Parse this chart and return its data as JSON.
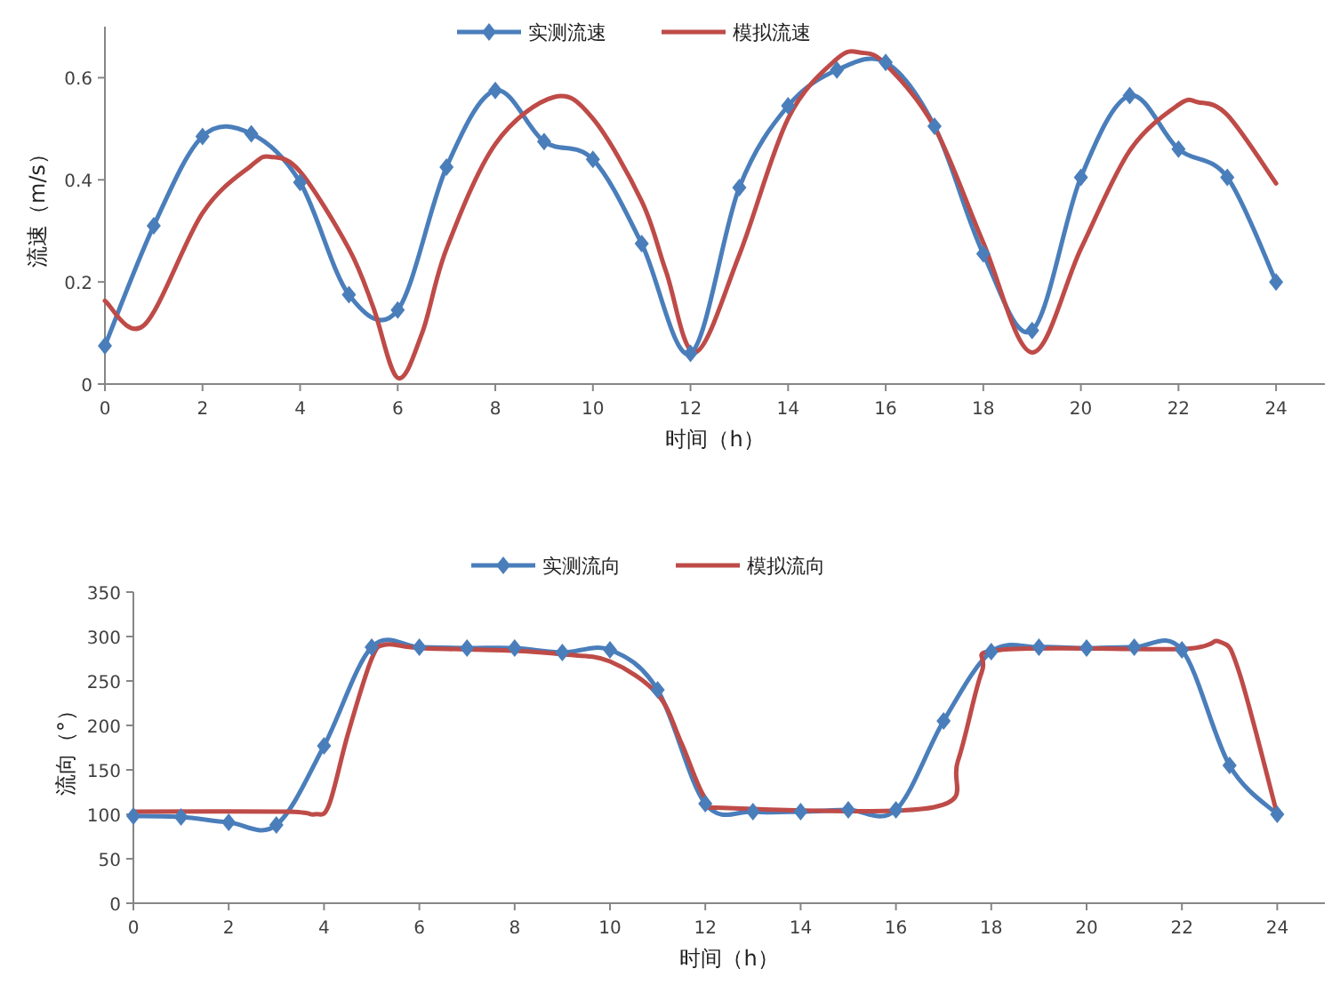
{
  "chart_data": [
    {
      "type": "line",
      "xlabel": "时间（h）",
      "ylabel": "流速（m/s）",
      "xlim": [
        0,
        25
      ],
      "xticks": [
        0,
        2,
        4,
        6,
        8,
        10,
        12,
        14,
        16,
        18,
        20,
        22,
        24
      ],
      "ylim": [
        0,
        0.7
      ],
      "yticks": [
        0,
        0.2,
        0.4,
        0.6
      ],
      "grid": false,
      "legend": "top",
      "line_style": "solid",
      "series": [
        {
          "name": "实测流速",
          "color": "#4a7ebb",
          "marker": "diamond",
          "x": [
            0,
            1,
            2,
            3,
            4,
            5,
            6,
            7,
            8,
            9,
            10,
            11,
            12,
            13,
            14,
            15,
            16,
            17,
            18,
            19,
            20,
            21,
            22,
            23,
            24
          ],
          "values": [
            0.075,
            0.31,
            0.485,
            0.49,
            0.395,
            0.175,
            0.145,
            0.425,
            0.575,
            0.475,
            0.44,
            0.275,
            0.06,
            0.385,
            0.545,
            0.615,
            0.63,
            0.505,
            0.255,
            0.105,
            0.405,
            0.565,
            0.46,
            0.405,
            0.2
          ]
        },
        {
          "name": "模拟流速",
          "color": "#be4b48",
          "marker": "none",
          "x": [
            0,
            0.8,
            2,
            3,
            3.4,
            4,
            5,
            5.5,
            6,
            6.5,
            7,
            8,
            9.2,
            10,
            11,
            11.5,
            12.1,
            13,
            14,
            15,
            15.5,
            16,
            17,
            18,
            19,
            20,
            21,
            22,
            22.4,
            23,
            24
          ],
          "values": [
            0.163,
            0.115,
            0.335,
            0.428,
            0.445,
            0.416,
            0.265,
            0.15,
            0.012,
            0.1,
            0.265,
            0.47,
            0.562,
            0.52,
            0.358,
            0.22,
            0.062,
            0.253,
            0.52,
            0.637,
            0.649,
            0.626,
            0.503,
            0.277,
            0.062,
            0.265,
            0.457,
            0.547,
            0.552,
            0.527,
            0.393
          ]
        }
      ]
    },
    {
      "type": "line",
      "xlabel": "时间（h）",
      "ylabel": "流向（°）",
      "xlim": [
        0,
        25
      ],
      "xticks": [
        0,
        2,
        4,
        6,
        8,
        10,
        12,
        14,
        16,
        18,
        20,
        22,
        24
      ],
      "ylim": [
        0,
        350
      ],
      "yticks": [
        0,
        50,
        100,
        150,
        200,
        250,
        300,
        350
      ],
      "grid": false,
      "legend": "top",
      "line_style": "solid",
      "series": [
        {
          "name": "实测流向",
          "color": "#4a7ebb",
          "marker": "diamond",
          "x": [
            0,
            1,
            2,
            3,
            4,
            5,
            6,
            7,
            8,
            9,
            10,
            11,
            12,
            13,
            14,
            15,
            16,
            17,
            18,
            19,
            20,
            21,
            22,
            23,
            24
          ],
          "values": [
            98,
            97,
            91,
            88,
            177,
            288,
            288,
            287,
            287,
            282,
            285,
            240,
            112,
            103,
            103,
            105,
            105,
            205,
            283,
            288,
            287,
            288,
            285,
            155,
            100
          ]
        },
        {
          "name": "模拟流向",
          "color": "#be4b48",
          "marker": "none",
          "x": [
            0,
            3.2,
            3.8,
            4.1,
            4.5,
            5,
            5.3,
            6,
            8,
            9,
            10,
            11,
            11.5,
            12,
            12.5,
            16.8,
            17.3,
            17.8,
            18.2,
            22,
            22.8,
            23.2,
            24
          ],
          "values": [
            103,
            103,
            100,
            110,
            190,
            275,
            291,
            287,
            284,
            280,
            272,
            235,
            180,
            118,
            107,
            108,
            160,
            260,
            285,
            286,
            294,
            260,
            100
          ]
        }
      ]
    }
  ]
}
